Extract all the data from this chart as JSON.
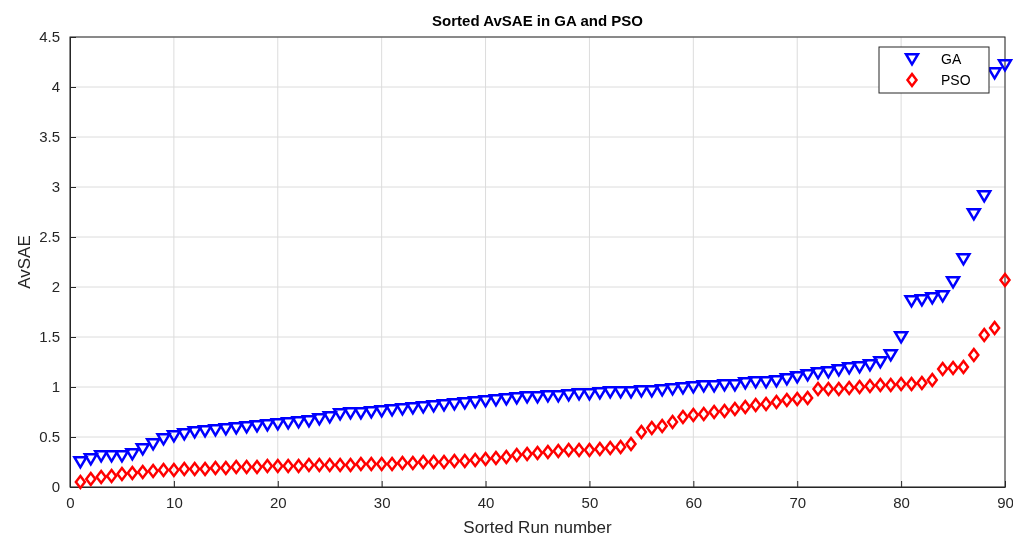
{
  "chart_data": {
    "type": "scatter",
    "title": "Sorted AvSAE in GA and PSO",
    "xlabel": "Sorted Run number",
    "ylabel": "AvSAE",
    "x": [
      1,
      2,
      3,
      4,
      5,
      6,
      7,
      8,
      9,
      10,
      11,
      12,
      13,
      14,
      15,
      16,
      17,
      18,
      19,
      20,
      21,
      22,
      23,
      24,
      25,
      26,
      27,
      28,
      29,
      30,
      31,
      32,
      33,
      34,
      35,
      36,
      37,
      38,
      39,
      40,
      41,
      42,
      43,
      44,
      45,
      46,
      47,
      48,
      49,
      50,
      51,
      52,
      53,
      54,
      55,
      56,
      57,
      58,
      59,
      60,
      61,
      62,
      63,
      64,
      65,
      66,
      67,
      68,
      69,
      70,
      71,
      72,
      73,
      74,
      75,
      76,
      77,
      78,
      79,
      80,
      81,
      82,
      83,
      84,
      85,
      86,
      87,
      88,
      89,
      90
    ],
    "series": [
      {
        "name": "GA",
        "color": "#0000ff",
        "marker": "triangle",
        "values": [
          0.25,
          0.28,
          0.31,
          0.31,
          0.31,
          0.33,
          0.38,
          0.43,
          0.48,
          0.51,
          0.53,
          0.55,
          0.56,
          0.57,
          0.58,
          0.59,
          0.6,
          0.61,
          0.62,
          0.63,
          0.64,
          0.65,
          0.66,
          0.68,
          0.7,
          0.73,
          0.74,
          0.74,
          0.75,
          0.76,
          0.77,
          0.78,
          0.79,
          0.8,
          0.81,
          0.82,
          0.83,
          0.84,
          0.85,
          0.86,
          0.87,
          0.88,
          0.89,
          0.9,
          0.9,
          0.91,
          0.91,
          0.92,
          0.93,
          0.93,
          0.94,
          0.95,
          0.95,
          0.95,
          0.96,
          0.96,
          0.97,
          0.98,
          0.99,
          1.0,
          1.01,
          1.01,
          1.02,
          1.02,
          1.04,
          1.05,
          1.05,
          1.06,
          1.08,
          1.1,
          1.12,
          1.14,
          1.15,
          1.17,
          1.19,
          1.2,
          1.22,
          1.25,
          1.32,
          1.5,
          1.86,
          1.87,
          1.89,
          1.91,
          2.05,
          2.28,
          2.73,
          2.91,
          4.14,
          4.22
        ]
      },
      {
        "name": "PSO",
        "color": "#ff0000",
        "marker": "diamond",
        "values": [
          0.05,
          0.08,
          0.1,
          0.11,
          0.13,
          0.14,
          0.15,
          0.16,
          0.17,
          0.17,
          0.18,
          0.18,
          0.18,
          0.19,
          0.19,
          0.2,
          0.2,
          0.2,
          0.21,
          0.21,
          0.21,
          0.21,
          0.22,
          0.22,
          0.22,
          0.22,
          0.22,
          0.23,
          0.23,
          0.23,
          0.23,
          0.24,
          0.24,
          0.25,
          0.25,
          0.25,
          0.26,
          0.26,
          0.27,
          0.28,
          0.29,
          0.3,
          0.32,
          0.33,
          0.34,
          0.35,
          0.36,
          0.37,
          0.37,
          0.37,
          0.38,
          0.39,
          0.4,
          0.43,
          0.55,
          0.59,
          0.61,
          0.65,
          0.7,
          0.72,
          0.73,
          0.75,
          0.76,
          0.78,
          0.8,
          0.82,
          0.83,
          0.85,
          0.87,
          0.88,
          0.89,
          0.98,
          0.98,
          0.98,
          0.99,
          1.0,
          1.01,
          1.02,
          1.02,
          1.03,
          1.03,
          1.04,
          1.07,
          1.18,
          1.19,
          1.2,
          1.32,
          1.52,
          1.59,
          2.07
        ]
      }
    ],
    "xlim": [
      0,
      90
    ],
    "xticks": [
      0,
      10,
      20,
      30,
      40,
      50,
      60,
      70,
      80,
      90
    ],
    "ylim": [
      0,
      4.5
    ],
    "yticks": [
      0,
      0.5,
      1,
      1.5,
      2,
      2.5,
      3,
      3.5,
      4,
      4.5
    ],
    "grid": true,
    "legend": "top right"
  }
}
